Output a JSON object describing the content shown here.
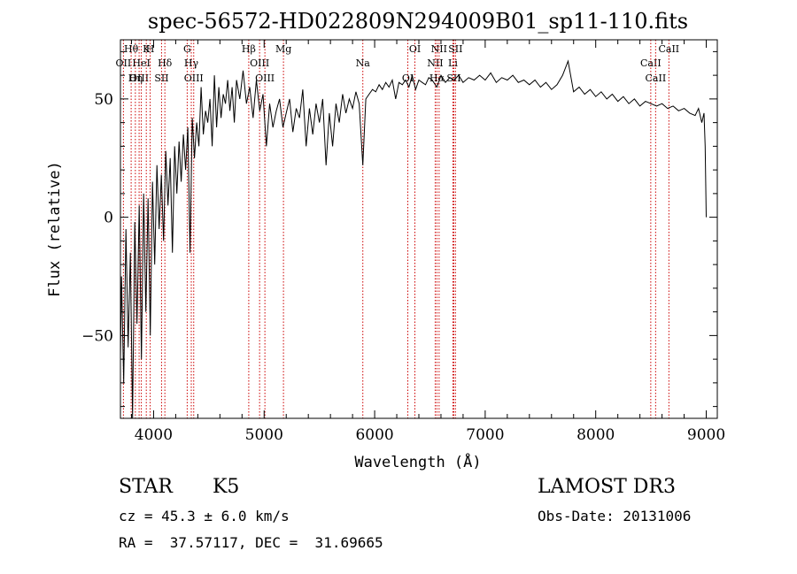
{
  "chart_data": {
    "type": "line",
    "title": "spec-56572-HD022809N294009B01_sp11-110.fits",
    "xlabel": "Wavelength (Å)",
    "ylabel": "Flux (relative)",
    "xlim": [
      3700,
      9100
    ],
    "ylim": [
      -85,
      75
    ],
    "xticks": [
      4000,
      5000,
      6000,
      7000,
      8000,
      9000
    ],
    "yticks": [
      -50,
      0,
      50
    ],
    "xtick_labels": [
      "4000",
      "5000",
      "6000",
      "7000",
      "8000",
      "9000"
    ],
    "ytick_labels": [
      "−50",
      "0",
      "50"
    ],
    "grid": false,
    "legend": "none",
    "series": [
      {
        "name": "spectrum",
        "x": [
          3700,
          3710,
          3730,
          3750,
          3770,
          3790,
          3810,
          3830,
          3850,
          3870,
          3890,
          3910,
          3930,
          3950,
          3970,
          3990,
          4010,
          4030,
          4050,
          4070,
          4090,
          4110,
          4130,
          4150,
          4170,
          4190,
          4210,
          4230,
          4250,
          4270,
          4290,
          4310,
          4330,
          4350,
          4370,
          4390,
          4410,
          4430,
          4450,
          4470,
          4490,
          4510,
          4530,
          4550,
          4570,
          4590,
          4610,
          4630,
          4650,
          4670,
          4690,
          4710,
          4730,
          4750,
          4780,
          4810,
          4840,
          4870,
          4900,
          4930,
          4960,
          4990,
          5020,
          5050,
          5080,
          5110,
          5140,
          5170,
          5200,
          5230,
          5260,
          5290,
          5320,
          5350,
          5380,
          5410,
          5440,
          5470,
          5500,
          5530,
          5560,
          5590,
          5620,
          5650,
          5680,
          5710,
          5740,
          5770,
          5800,
          5830,
          5860,
          5893,
          5920,
          5950,
          5980,
          6010,
          6040,
          6070,
          6100,
          6130,
          6160,
          6190,
          6220,
          6250,
          6280,
          6310,
          6340,
          6370,
          6400,
          6430,
          6460,
          6490,
          6520,
          6563,
          6600,
          6640,
          6680,
          6720,
          6760,
          6800,
          6850,
          6900,
          6950,
          7000,
          7050,
          7100,
          7150,
          7200,
          7250,
          7300,
          7350,
          7400,
          7450,
          7500,
          7550,
          7600,
          7650,
          7700,
          7750,
          7800,
          7850,
          7900,
          7950,
          8000,
          8050,
          8100,
          8150,
          8200,
          8250,
          8300,
          8350,
          8400,
          8450,
          8500,
          8550,
          8600,
          8650,
          8700,
          8750,
          8800,
          8850,
          8900,
          8930,
          8960,
          8980,
          8990,
          9000
        ],
        "y": [
          -60,
          -25,
          -70,
          -5,
          -55,
          -15,
          -85,
          -2,
          -45,
          5,
          -60,
          10,
          -40,
          8,
          -50,
          15,
          -20,
          22,
          -5,
          18,
          -10,
          28,
          5,
          25,
          -15,
          30,
          10,
          32,
          15,
          35,
          20,
          38,
          -15,
          42,
          25,
          40,
          30,
          55,
          35,
          45,
          40,
          50,
          30,
          60,
          38,
          55,
          42,
          52,
          48,
          58,
          45,
          55,
          40,
          58,
          50,
          62,
          48,
          55,
          42,
          58,
          45,
          52,
          30,
          48,
          38,
          45,
          50,
          38,
          44,
          50,
          36,
          46,
          42,
          54,
          30,
          46,
          35,
          48,
          40,
          50,
          22,
          44,
          30,
          48,
          40,
          52,
          44,
          50,
          46,
          53,
          48,
          22,
          50,
          52,
          54,
          53,
          56,
          54,
          57,
          55,
          58,
          50,
          57,
          56,
          58,
          55,
          60,
          54,
          58,
          57,
          56,
          59,
          58,
          55,
          60,
          57,
          59,
          58,
          60,
          57,
          59,
          58,
          60,
          58,
          61,
          57,
          59,
          58,
          60,
          57,
          58,
          56,
          58,
          55,
          57,
          54,
          56,
          60,
          66,
          53,
          55,
          52,
          54,
          51,
          53,
          50,
          52,
          49,
          51,
          48,
          50,
          47,
          49,
          48,
          47,
          48,
          46,
          47,
          45,
          46,
          44,
          43,
          46,
          40,
          44,
          30,
          0
        ]
      }
    ],
    "lines": [
      {
        "label": "Hθ",
        "x": 3797
      },
      {
        "label": "OII",
        "x": 3727
      },
      {
        "label": "OIII",
        "x": 3869
      },
      {
        "label": "K",
        "x": 3934
      },
      {
        "label": "HeI",
        "x": 3889
      },
      {
        "label": "Hη",
        "x": 3835
      },
      {
        "label": "H",
        "x": 3969
      },
      {
        "label": "Hδ",
        "x": 4102
      },
      {
        "label": "SII",
        "x": 4072
      },
      {
        "label": "G",
        "x": 4304
      },
      {
        "label": "Hγ",
        "x": 4341
      },
      {
        "label": "OIII",
        "x": 4363
      },
      {
        "label": "Hβ",
        "x": 4861
      },
      {
        "label": "OIII",
        "x": 4959
      },
      {
        "label": "OIII",
        "x": 5007
      },
      {
        "label": "Mg",
        "x": 5175
      },
      {
        "label": "Na",
        "x": 5893
      },
      {
        "label": "OI",
        "x": 6300
      },
      {
        "label": "OI",
        "x": 6364
      },
      {
        "label": "NII",
        "x": 6548
      },
      {
        "label": "Hα",
        "x": 6563
      },
      {
        "label": "NII",
        "x": 6583
      },
      {
        "label": "Li",
        "x": 6708
      },
      {
        "label": "SII",
        "x": 6716
      },
      {
        "label": "SII",
        "x": 6731
      },
      {
        "label": "CaII",
        "x": 8498
      },
      {
        "label": "CaII",
        "x": 8542
      },
      {
        "label": "CaII",
        "x": 8662
      }
    ]
  },
  "info": {
    "object_class": "STAR",
    "subclass": "K5",
    "survey": "LAMOST DR3",
    "cz": "cz = 45.3 ± 6.0 km/s",
    "obs_date": "Obs-Date: 20131006",
    "coords": "RA =  37.57117, DEC =  31.69665"
  },
  "colors": {
    "spectrum": "#000000",
    "lines": "#cc0000",
    "axes": "#000000"
  }
}
